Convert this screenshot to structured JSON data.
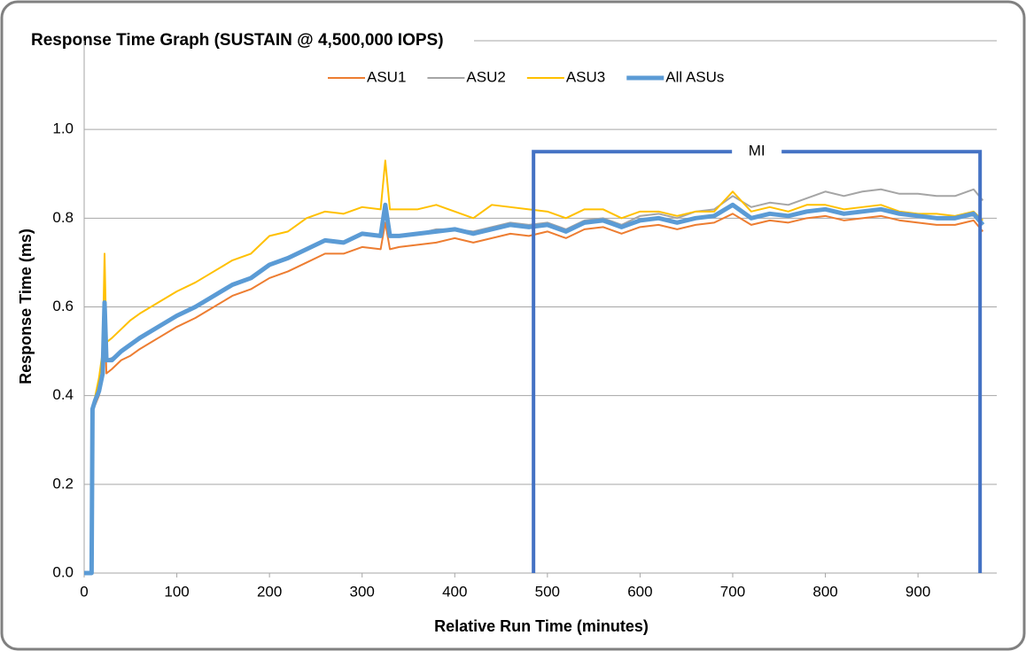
{
  "chart_data": {
    "type": "line",
    "title": "Response Time Graph (SUSTAIN @ 4,500,000 IOPS)",
    "x_label": "Relative Run Time (minutes)",
    "y_label": "Response Time (ms)",
    "x": [
      0,
      8,
      9,
      12,
      16,
      20,
      22,
      24,
      30,
      40,
      50,
      60,
      80,
      100,
      120,
      140,
      160,
      180,
      200,
      220,
      240,
      260,
      280,
      300,
      320,
      325,
      330,
      340,
      360,
      380,
      400,
      420,
      440,
      460,
      480,
      500,
      520,
      540,
      560,
      580,
      600,
      620,
      640,
      660,
      680,
      700,
      720,
      740,
      760,
      780,
      800,
      820,
      840,
      860,
      880,
      900,
      920,
      940,
      960,
      970
    ],
    "series": [
      {
        "name": "ASU1",
        "color": "#ed7d31",
        "width": 2,
        "values": [
          0,
          0,
          0.37,
          0.38,
          0.4,
          0.44,
          0.6,
          0.45,
          0.46,
          0.48,
          0.49,
          0.505,
          0.53,
          0.555,
          0.575,
          0.6,
          0.625,
          0.64,
          0.665,
          0.68,
          0.7,
          0.72,
          0.72,
          0.735,
          0.73,
          0.79,
          0.73,
          0.735,
          0.74,
          0.745,
          0.755,
          0.745,
          0.755,
          0.765,
          0.76,
          0.77,
          0.755,
          0.775,
          0.78,
          0.765,
          0.78,
          0.785,
          0.775,
          0.785,
          0.79,
          0.81,
          0.785,
          0.795,
          0.79,
          0.8,
          0.805,
          0.795,
          0.8,
          0.805,
          0.795,
          0.79,
          0.785,
          0.785,
          0.795,
          0.77
        ]
      },
      {
        "name": "ASU2",
        "color": "#a5a5a5",
        "width": 2,
        "values": [
          0,
          0,
          0.37,
          0.39,
          0.41,
          0.45,
          0.61,
          0.48,
          0.485,
          0.5,
          0.515,
          0.53,
          0.555,
          0.58,
          0.6,
          0.625,
          0.65,
          0.665,
          0.695,
          0.71,
          0.73,
          0.75,
          0.745,
          0.765,
          0.76,
          0.83,
          0.76,
          0.76,
          0.765,
          0.775,
          0.775,
          0.77,
          0.78,
          0.79,
          0.785,
          0.79,
          0.775,
          0.795,
          0.8,
          0.785,
          0.805,
          0.81,
          0.8,
          0.815,
          0.82,
          0.85,
          0.825,
          0.835,
          0.83,
          0.845,
          0.86,
          0.85,
          0.86,
          0.865,
          0.855,
          0.855,
          0.85,
          0.85,
          0.865,
          0.84
        ]
      },
      {
        "name": "ASU3",
        "color": "#ffc000",
        "width": 2,
        "values": [
          0,
          0,
          0.37,
          0.4,
          0.44,
          0.5,
          0.72,
          0.52,
          0.53,
          0.55,
          0.57,
          0.585,
          0.61,
          0.635,
          0.655,
          0.68,
          0.705,
          0.72,
          0.76,
          0.77,
          0.8,
          0.815,
          0.81,
          0.825,
          0.82,
          0.93,
          0.82,
          0.82,
          0.82,
          0.83,
          0.815,
          0.8,
          0.83,
          0.825,
          0.82,
          0.815,
          0.8,
          0.82,
          0.82,
          0.8,
          0.815,
          0.815,
          0.805,
          0.815,
          0.815,
          0.86,
          0.815,
          0.825,
          0.815,
          0.83,
          0.83,
          0.82,
          0.825,
          0.83,
          0.815,
          0.81,
          0.81,
          0.805,
          0.815,
          0.795
        ]
      },
      {
        "name": "All ASUs",
        "color": "#5b9bd5",
        "width": 5,
        "values": [
          0,
          0,
          0.37,
          0.39,
          0.41,
          0.45,
          0.61,
          0.48,
          0.48,
          0.5,
          0.515,
          0.53,
          0.555,
          0.58,
          0.6,
          0.625,
          0.65,
          0.665,
          0.695,
          0.71,
          0.73,
          0.75,
          0.745,
          0.765,
          0.76,
          0.83,
          0.76,
          0.76,
          0.765,
          0.77,
          0.775,
          0.765,
          0.775,
          0.785,
          0.78,
          0.785,
          0.77,
          0.79,
          0.795,
          0.78,
          0.795,
          0.8,
          0.79,
          0.8,
          0.805,
          0.83,
          0.8,
          0.81,
          0.805,
          0.815,
          0.82,
          0.81,
          0.815,
          0.82,
          0.81,
          0.805,
          0.8,
          0.8,
          0.81,
          0.785
        ]
      }
    ],
    "xlim": [
      0,
      985
    ],
    "ylim": [
      0,
      1.2
    ],
    "xticks": [
      0,
      100,
      200,
      300,
      400,
      500,
      600,
      700,
      800,
      900
    ],
    "yticks": [
      {
        "value": 0,
        "label": "0.0"
      },
      0.2,
      0.4,
      0.6,
      0.8,
      {
        "value": 1,
        "label": "1.0"
      }
    ],
    "grid": true,
    "legend": "top",
    "mi_window": {
      "label": "MI",
      "x": [
        485,
        967
      ],
      "y": 0.95,
      "color": "#4472c4"
    }
  }
}
